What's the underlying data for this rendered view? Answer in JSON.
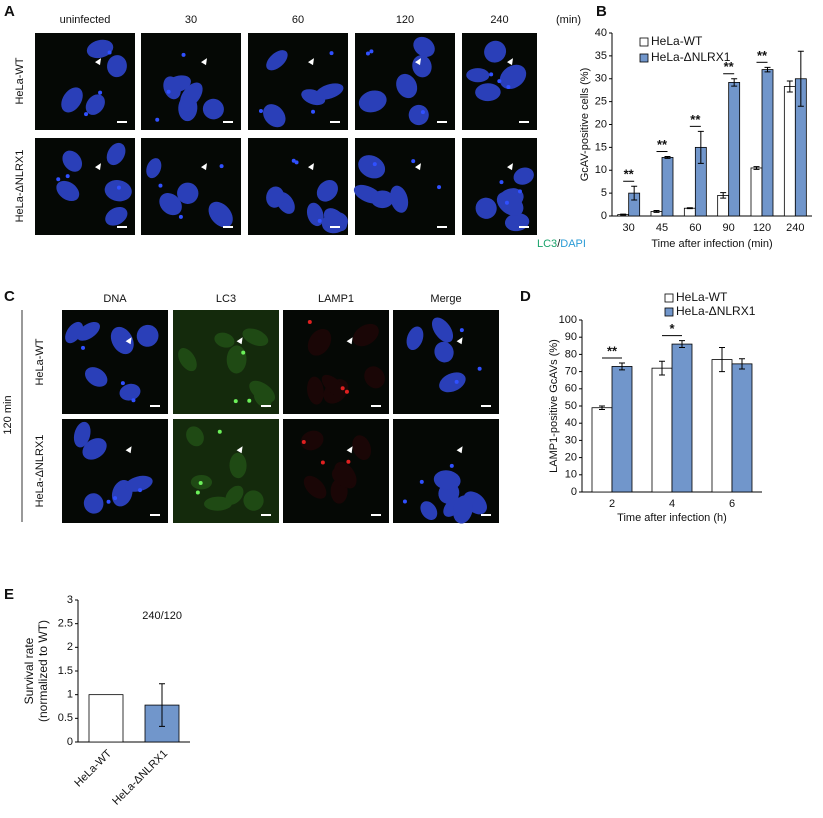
{
  "chart_data": [
    {
      "type": "bar",
      "panel": "B",
      "y_label": "GcAV-positive cells (%)",
      "x_label": "Time after infection (min)",
      "categories": [
        "30",
        "45",
        "60",
        "90",
        "120",
        "240"
      ],
      "series": [
        {
          "name": "HeLa-WT",
          "color": "#ffffff",
          "values": [
            0.3,
            1,
            1.7,
            4.5,
            10.5,
            28.3
          ],
          "errors": [
            0.1,
            0.2,
            0.1,
            0.6,
            0.3,
            1.2
          ]
        },
        {
          "name": "HeLa-ΔNLRX1",
          "color": "#7196cb",
          "values": [
            5,
            12.8,
            15,
            29.2,
            32,
            30
          ],
          "errors": [
            1.5,
            0.2,
            3.5,
            0.8,
            0.5,
            6
          ]
        }
      ],
      "significance_labels": [
        "**",
        "**",
        "**",
        "**",
        "**",
        null
      ],
      "ylim": [
        0,
        40
      ],
      "yticks": [
        0,
        5,
        10,
        15,
        20,
        25,
        30,
        35,
        40
      ],
      "grid": false
    },
    {
      "type": "bar",
      "panel": "D",
      "y_label": "LAMP1-positive GcAVs (%)",
      "x_label": "Time after infection (h)",
      "categories": [
        "2",
        "4",
        "6"
      ],
      "series": [
        {
          "name": "HeLa-WT",
          "color": "#ffffff",
          "values": [
            49,
            72,
            77
          ],
          "errors": [
            1,
            4,
            7
          ]
        },
        {
          "name": "HeLa-ΔNLRX1",
          "color": "#7196cb",
          "values": [
            73,
            86,
            74.5
          ],
          "errors": [
            2,
            2,
            3
          ]
        }
      ],
      "significance_labels": [
        "**",
        "*",
        null
      ],
      "ylim": [
        0,
        100
      ],
      "yticks": [
        0,
        10,
        20,
        30,
        40,
        50,
        60,
        70,
        80,
        90,
        100
      ],
      "grid": false
    },
    {
      "type": "bar",
      "panel": "E",
      "y_label_lines": [
        "Survival rate",
        "(normalized to WT)"
      ],
      "annotation": "240/120",
      "categories": [
        "HeLa-WT",
        "HeLa-ΔNLRX1"
      ],
      "series": [
        {
          "colors": [
            "#ffffff",
            "#7196cb"
          ],
          "values": [
            1,
            0.78
          ],
          "errors": [
            null,
            0.45
          ]
        }
      ],
      "ylim": [
        0,
        3
      ],
      "yticks": [
        0,
        0.5,
        1,
        1.5,
        2,
        2.5,
        3
      ],
      "grid": false
    }
  ],
  "panel_a": {
    "letter": "A",
    "columns": [
      "uninfected",
      "30",
      "60",
      "120",
      "240"
    ],
    "unit": "(min)",
    "rows": [
      "HeLa-WT",
      "HeLa-ΔNLRX1"
    ],
    "stain": [
      "LC3",
      "/",
      "DAPI"
    ]
  },
  "panel_c": {
    "letter": "C",
    "columns": [
      "DNA",
      "LC3",
      "LAMP1",
      "Merge"
    ],
    "rows": [
      "HeLa-WT",
      "HeLa-ΔNLRX1"
    ],
    "time": "120 min"
  }
}
